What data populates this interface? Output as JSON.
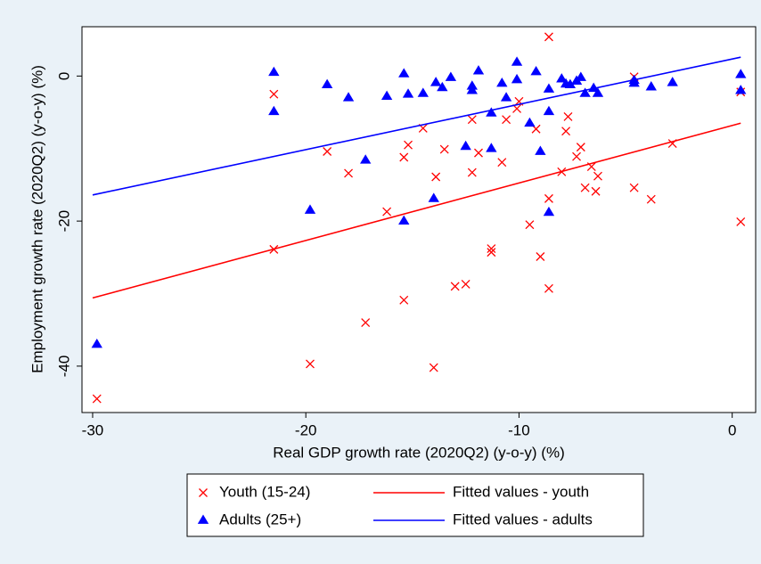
{
  "chart_data": {
    "type": "scatter",
    "x_label": "Real GDP growth rate (2020Q2) (y-o-y) (%)",
    "y_label": "Employment growth rate (2020Q2) (y-o-y) (%)",
    "xlim": [
      -30.5,
      1.1
    ],
    "ylim": [
      -46.4,
      6.8
    ],
    "xticks": [
      -30,
      -20,
      -10,
      0
    ],
    "yticks": [
      -40,
      -20,
      0
    ],
    "series": [
      {
        "name": "Youth (15-24)",
        "color": "#ff0000",
        "marker": "x",
        "x": [
          -29.8,
          -21.5,
          -21.5,
          -19.8,
          -19.0,
          -18.0,
          -17.2,
          -16.2,
          -15.4,
          -15.4,
          -15.2,
          -14.5,
          -14.0,
          -13.9,
          -13.5,
          -13.0,
          -12.5,
          -12.2,
          -12.2,
          -11.9,
          -11.3,
          -11.3,
          -10.8,
          -10.6,
          -10.1,
          -10.0,
          -9.5,
          -9.2,
          -9.0,
          -8.6,
          -8.6,
          -8.6,
          -8.0,
          -7.8,
          -7.7,
          -7.3,
          -7.1,
          -6.9,
          -6.6,
          -6.4,
          -6.3,
          -4.6,
          -4.6,
          -3.8,
          -2.8,
          0.4,
          0.4
        ],
        "values": [
          -44.5,
          -2.5,
          -23.9,
          -39.7,
          -10.4,
          -13.4,
          -34.0,
          -18.7,
          -30.9,
          -11.2,
          -9.5,
          -7.2,
          -40.2,
          -13.9,
          -10.1,
          -29.0,
          -28.7,
          -6.0,
          -13.3,
          -10.6,
          -24.3,
          -23.8,
          -11.9,
          -6.0,
          -4.5,
          -3.5,
          -20.5,
          -7.3,
          -24.9,
          5.4,
          -16.9,
          -29.3,
          -13.2,
          -7.6,
          -5.6,
          -11.1,
          -9.8,
          -15.4,
          -12.5,
          -15.9,
          -13.8,
          -15.4,
          -0.1,
          -17.0,
          -9.3,
          -2.2,
          -20.1
        ]
      },
      {
        "name": "Adults (25+)",
        "color": "#0000ff",
        "marker": "triangle",
        "x": [
          -29.8,
          -21.5,
          -21.5,
          -19.8,
          -19.0,
          -18.0,
          -17.2,
          -16.2,
          -15.4,
          -15.4,
          -15.2,
          -14.5,
          -14.0,
          -13.9,
          -13.6,
          -13.2,
          -12.5,
          -12.2,
          -12.2,
          -11.9,
          -11.3,
          -11.3,
          -10.8,
          -10.6,
          -10.1,
          -10.1,
          -9.5,
          -9.2,
          -9.0,
          -8.6,
          -8.6,
          -8.6,
          -8.0,
          -7.8,
          -7.6,
          -7.3,
          -7.1,
          -6.9,
          -6.5,
          -6.3,
          -4.6,
          -4.6,
          -3.8,
          -2.8,
          0.4,
          0.4
        ],
        "values": [
          -37.0,
          0.5,
          -4.9,
          -18.5,
          -1.2,
          -3.0,
          -11.6,
          -2.8,
          -20.0,
          0.3,
          -2.5,
          -2.4,
          -16.9,
          -0.9,
          -1.6,
          -0.2,
          -9.7,
          -1.4,
          -2.0,
          0.7,
          -5.1,
          -10.0,
          -1.0,
          -3.0,
          1.9,
          -0.5,
          -6.5,
          0.6,
          -10.4,
          -1.8,
          -4.9,
          -18.8,
          -0.4,
          -1.1,
          -1.2,
          -0.7,
          -0.2,
          -2.4,
          -1.7,
          -2.4,
          -1.0,
          -0.6,
          -1.5,
          -0.9,
          0.2,
          -2.0
        ]
      },
      {
        "name": "Fitted values - youth",
        "color": "#ff0000",
        "marker": "line",
        "x": [
          -30,
          0.4
        ],
        "values": [
          -30.6,
          -6.5
        ]
      },
      {
        "name": "Fitted values - adults",
        "color": "#0000ff",
        "marker": "line",
        "x": [
          -30,
          0.4
        ],
        "values": [
          -16.4,
          2.6
        ]
      }
    ]
  }
}
